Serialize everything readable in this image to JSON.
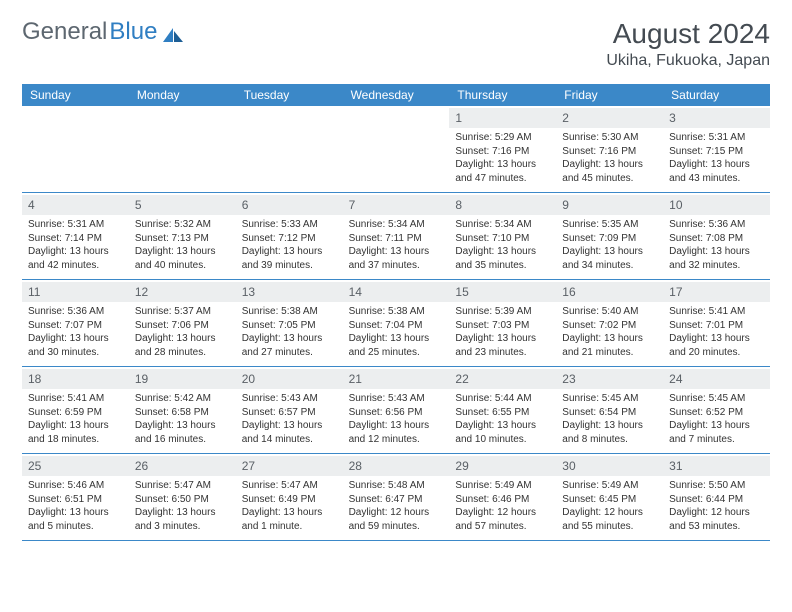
{
  "logo": {
    "text1": "General",
    "text2": "Blue"
  },
  "title": "August 2024",
  "location": "Ukiha, Fukuoka, Japan",
  "colors": {
    "header_bg": "#3b88c8",
    "header_text": "#ffffff",
    "daynum_bg": "#eceeef",
    "border": "#3b88c8",
    "logo_gray": "#5d6770",
    "logo_blue": "#2f7ec2"
  },
  "dayNames": [
    "Sunday",
    "Monday",
    "Tuesday",
    "Wednesday",
    "Thursday",
    "Friday",
    "Saturday"
  ],
  "weeks": [
    [
      {
        "num": "",
        "sunrise": "",
        "sunset": "",
        "daylight": ""
      },
      {
        "num": "",
        "sunrise": "",
        "sunset": "",
        "daylight": ""
      },
      {
        "num": "",
        "sunrise": "",
        "sunset": "",
        "daylight": ""
      },
      {
        "num": "",
        "sunrise": "",
        "sunset": "",
        "daylight": ""
      },
      {
        "num": "1",
        "sunrise": "Sunrise: 5:29 AM",
        "sunset": "Sunset: 7:16 PM",
        "daylight": "Daylight: 13 hours and 47 minutes."
      },
      {
        "num": "2",
        "sunrise": "Sunrise: 5:30 AM",
        "sunset": "Sunset: 7:16 PM",
        "daylight": "Daylight: 13 hours and 45 minutes."
      },
      {
        "num": "3",
        "sunrise": "Sunrise: 5:31 AM",
        "sunset": "Sunset: 7:15 PM",
        "daylight": "Daylight: 13 hours and 43 minutes."
      }
    ],
    [
      {
        "num": "4",
        "sunrise": "Sunrise: 5:31 AM",
        "sunset": "Sunset: 7:14 PM",
        "daylight": "Daylight: 13 hours and 42 minutes."
      },
      {
        "num": "5",
        "sunrise": "Sunrise: 5:32 AM",
        "sunset": "Sunset: 7:13 PM",
        "daylight": "Daylight: 13 hours and 40 minutes."
      },
      {
        "num": "6",
        "sunrise": "Sunrise: 5:33 AM",
        "sunset": "Sunset: 7:12 PM",
        "daylight": "Daylight: 13 hours and 39 minutes."
      },
      {
        "num": "7",
        "sunrise": "Sunrise: 5:34 AM",
        "sunset": "Sunset: 7:11 PM",
        "daylight": "Daylight: 13 hours and 37 minutes."
      },
      {
        "num": "8",
        "sunrise": "Sunrise: 5:34 AM",
        "sunset": "Sunset: 7:10 PM",
        "daylight": "Daylight: 13 hours and 35 minutes."
      },
      {
        "num": "9",
        "sunrise": "Sunrise: 5:35 AM",
        "sunset": "Sunset: 7:09 PM",
        "daylight": "Daylight: 13 hours and 34 minutes."
      },
      {
        "num": "10",
        "sunrise": "Sunrise: 5:36 AM",
        "sunset": "Sunset: 7:08 PM",
        "daylight": "Daylight: 13 hours and 32 minutes."
      }
    ],
    [
      {
        "num": "11",
        "sunrise": "Sunrise: 5:36 AM",
        "sunset": "Sunset: 7:07 PM",
        "daylight": "Daylight: 13 hours and 30 minutes."
      },
      {
        "num": "12",
        "sunrise": "Sunrise: 5:37 AM",
        "sunset": "Sunset: 7:06 PM",
        "daylight": "Daylight: 13 hours and 28 minutes."
      },
      {
        "num": "13",
        "sunrise": "Sunrise: 5:38 AM",
        "sunset": "Sunset: 7:05 PM",
        "daylight": "Daylight: 13 hours and 27 minutes."
      },
      {
        "num": "14",
        "sunrise": "Sunrise: 5:38 AM",
        "sunset": "Sunset: 7:04 PM",
        "daylight": "Daylight: 13 hours and 25 minutes."
      },
      {
        "num": "15",
        "sunrise": "Sunrise: 5:39 AM",
        "sunset": "Sunset: 7:03 PM",
        "daylight": "Daylight: 13 hours and 23 minutes."
      },
      {
        "num": "16",
        "sunrise": "Sunrise: 5:40 AM",
        "sunset": "Sunset: 7:02 PM",
        "daylight": "Daylight: 13 hours and 21 minutes."
      },
      {
        "num": "17",
        "sunrise": "Sunrise: 5:41 AM",
        "sunset": "Sunset: 7:01 PM",
        "daylight": "Daylight: 13 hours and 20 minutes."
      }
    ],
    [
      {
        "num": "18",
        "sunrise": "Sunrise: 5:41 AM",
        "sunset": "Sunset: 6:59 PM",
        "daylight": "Daylight: 13 hours and 18 minutes."
      },
      {
        "num": "19",
        "sunrise": "Sunrise: 5:42 AM",
        "sunset": "Sunset: 6:58 PM",
        "daylight": "Daylight: 13 hours and 16 minutes."
      },
      {
        "num": "20",
        "sunrise": "Sunrise: 5:43 AM",
        "sunset": "Sunset: 6:57 PM",
        "daylight": "Daylight: 13 hours and 14 minutes."
      },
      {
        "num": "21",
        "sunrise": "Sunrise: 5:43 AM",
        "sunset": "Sunset: 6:56 PM",
        "daylight": "Daylight: 13 hours and 12 minutes."
      },
      {
        "num": "22",
        "sunrise": "Sunrise: 5:44 AM",
        "sunset": "Sunset: 6:55 PM",
        "daylight": "Daylight: 13 hours and 10 minutes."
      },
      {
        "num": "23",
        "sunrise": "Sunrise: 5:45 AM",
        "sunset": "Sunset: 6:54 PM",
        "daylight": "Daylight: 13 hours and 8 minutes."
      },
      {
        "num": "24",
        "sunrise": "Sunrise: 5:45 AM",
        "sunset": "Sunset: 6:52 PM",
        "daylight": "Daylight: 13 hours and 7 minutes."
      }
    ],
    [
      {
        "num": "25",
        "sunrise": "Sunrise: 5:46 AM",
        "sunset": "Sunset: 6:51 PM",
        "daylight": "Daylight: 13 hours and 5 minutes."
      },
      {
        "num": "26",
        "sunrise": "Sunrise: 5:47 AM",
        "sunset": "Sunset: 6:50 PM",
        "daylight": "Daylight: 13 hours and 3 minutes."
      },
      {
        "num": "27",
        "sunrise": "Sunrise: 5:47 AM",
        "sunset": "Sunset: 6:49 PM",
        "daylight": "Daylight: 13 hours and 1 minute."
      },
      {
        "num": "28",
        "sunrise": "Sunrise: 5:48 AM",
        "sunset": "Sunset: 6:47 PM",
        "daylight": "Daylight: 12 hours and 59 minutes."
      },
      {
        "num": "29",
        "sunrise": "Sunrise: 5:49 AM",
        "sunset": "Sunset: 6:46 PM",
        "daylight": "Daylight: 12 hours and 57 minutes."
      },
      {
        "num": "30",
        "sunrise": "Sunrise: 5:49 AM",
        "sunset": "Sunset: 6:45 PM",
        "daylight": "Daylight: 12 hours and 55 minutes."
      },
      {
        "num": "31",
        "sunrise": "Sunrise: 5:50 AM",
        "sunset": "Sunset: 6:44 PM",
        "daylight": "Daylight: 12 hours and 53 minutes."
      }
    ]
  ]
}
